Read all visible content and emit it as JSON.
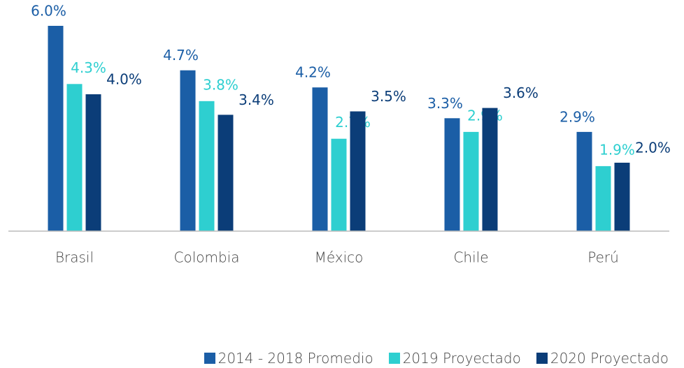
{
  "chart_data": {
    "type": "bar",
    "categories": [
      "Brasil",
      "Colombia",
      "México",
      "Chile",
      "Perú"
    ],
    "series": [
      {
        "name": "2014 - 2018 Promedio",
        "color": "#1b5ea6",
        "values": [
          6.0,
          4.7,
          4.2,
          3.3,
          2.9
        ],
        "value_labels": [
          "6.0%",
          "4.7%",
          "4.2%",
          "3.3%",
          "2.9%"
        ]
      },
      {
        "name": "2019 Proyectado",
        "color": "#2ecfd0",
        "values": [
          4.3,
          3.8,
          2.7,
          2.9,
          1.9
        ],
        "value_labels": [
          "4.3%",
          "3.8%",
          "2.7%",
          "2.9%",
          "1.9%"
        ]
      },
      {
        "name": "2020 Proyectado",
        "color": "#0b3d78",
        "values": [
          4.0,
          3.4,
          3.5,
          3.6,
          2.0
        ],
        "value_labels": [
          "4.0%",
          "3.4%",
          "3.5%",
          "3.6%",
          "2.0%"
        ]
      }
    ],
    "ylim": [
      0,
      6.0
    ],
    "legend": "bottom-right"
  }
}
